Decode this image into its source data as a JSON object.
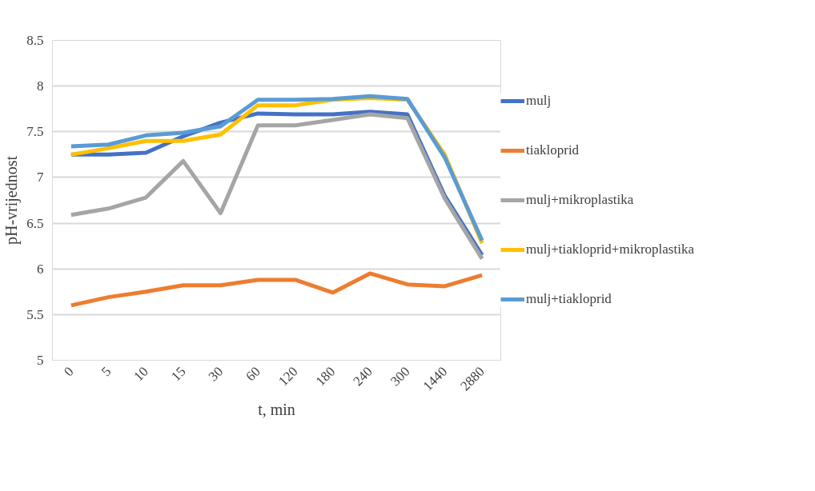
{
  "chart_data": {
    "type": "line",
    "xlabel": "t, min",
    "ylabel": "pH-vrijednost",
    "categories": [
      "0",
      "5",
      "10",
      "15",
      "30",
      "60",
      "120",
      "180",
      "240",
      "300",
      "1440",
      "2880"
    ],
    "series": [
      {
        "name": "mulj",
        "color": "#4472c4",
        "values": [
          7.25,
          7.25,
          7.27,
          7.45,
          7.6,
          7.7,
          7.69,
          7.69,
          7.72,
          7.69,
          6.8,
          6.15
        ]
      },
      {
        "name": "tiakloprid",
        "color": "#ed7d31",
        "values": [
          5.6,
          5.69,
          5.75,
          5.82,
          5.82,
          5.88,
          5.88,
          5.74,
          5.95,
          5.83,
          5.81,
          5.93
        ]
      },
      {
        "name": "mulj+mikroplastika",
        "color": "#a5a5a5",
        "values": [
          6.59,
          6.66,
          6.78,
          7.18,
          6.61,
          7.57,
          7.57,
          7.63,
          7.69,
          7.65,
          6.77,
          6.11
        ]
      },
      {
        "name": "mulj+tiakloprid+mikroplastika",
        "color": "#ffc000",
        "values": [
          7.25,
          7.32,
          7.4,
          7.4,
          7.47,
          7.79,
          7.79,
          7.85,
          7.87,
          7.85,
          7.25,
          6.28
        ]
      },
      {
        "name": "mulj+tiakloprid",
        "color": "#5b9bd5",
        "values": [
          7.34,
          7.36,
          7.46,
          7.49,
          7.56,
          7.85,
          7.85,
          7.86,
          7.89,
          7.86,
          7.22,
          6.31
        ]
      }
    ],
    "ylim": [
      5,
      8.5
    ],
    "yticks": [
      5,
      5.5,
      6,
      6.5,
      7,
      7.5,
      8,
      8.5
    ],
    "grid": "y",
    "legend": "right",
    "marker": "none",
    "line_style": "solid"
  }
}
